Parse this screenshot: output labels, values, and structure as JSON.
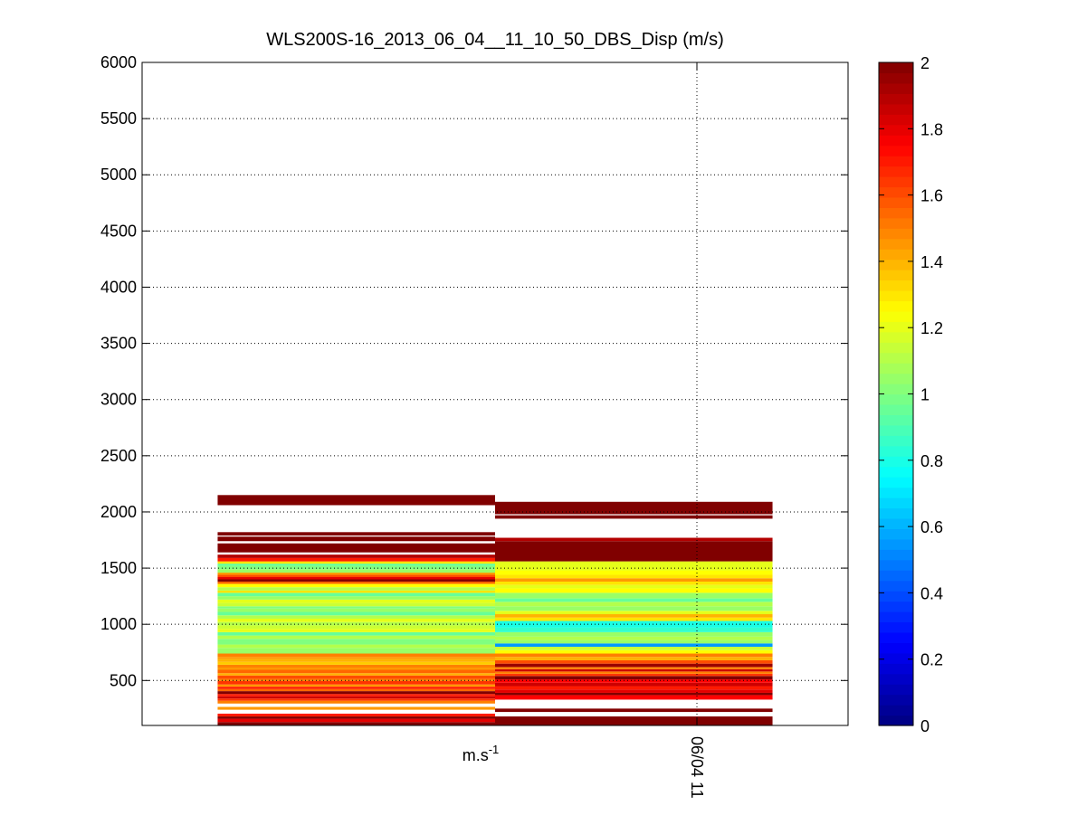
{
  "chart_data": {
    "type": "heatmap",
    "title": "WLS200S-16_2013_06_04__11_10_50_DBS_Disp (m/s)",
    "xlabel": "m.s",
    "xlabel_superscript": "-1",
    "ylabel": "",
    "ylim": [
      100,
      6000
    ],
    "yticks": [
      500,
      1000,
      1500,
      2000,
      2500,
      3000,
      3500,
      4000,
      4500,
      5000,
      5500,
      6000
    ],
    "xticks": [
      "06/04 11"
    ],
    "grid": true,
    "colormap": "jet",
    "clim": [
      0,
      2
    ],
    "colorbar_ticks": [
      0,
      0.2,
      0.4,
      0.6,
      0.8,
      1,
      1.2,
      1.4,
      1.6,
      1.8,
      2
    ],
    "colorbar_tick_labels": [
      "0",
      "0.2",
      "0.4",
      "0.6",
      "0.8",
      "1",
      "1.2",
      "1.4",
      "1.6",
      "1.8",
      "2"
    ],
    "columns": [
      {
        "x_range": [
          0.107,
          0.5
        ],
        "cells": [
          [
            100,
            130,
            2.0
          ],
          [
            130,
            160,
            1.8
          ],
          [
            160,
            180,
            2.0
          ],
          [
            180,
            205,
            1.7
          ],
          [
            240,
            265,
            1.45
          ],
          [
            295,
            320,
            1.5
          ],
          [
            320,
            340,
            1.65
          ],
          [
            340,
            360,
            1.85
          ],
          [
            360,
            380,
            1.7
          ],
          [
            380,
            405,
            2.0
          ],
          [
            405,
            425,
            1.55
          ],
          [
            425,
            445,
            1.7
          ],
          [
            445,
            465,
            1.45
          ],
          [
            465,
            495,
            1.65
          ],
          [
            495,
            515,
            1.5
          ],
          [
            515,
            545,
            1.6
          ],
          [
            545,
            565,
            1.4
          ],
          [
            565,
            595,
            1.55
          ],
          [
            595,
            615,
            1.45
          ],
          [
            615,
            640,
            1.5
          ],
          [
            640,
            665,
            1.35
          ],
          [
            665,
            690,
            1.4
          ],
          [
            690,
            710,
            1.45
          ],
          [
            710,
            740,
            1.5
          ],
          [
            740,
            790,
            1.05
          ],
          [
            790,
            820,
            1.1
          ],
          [
            820,
            870,
            1.0
          ],
          [
            870,
            900,
            1.1
          ],
          [
            900,
            930,
            0.95
          ],
          [
            930,
            960,
            1.2
          ],
          [
            960,
            990,
            1.15
          ],
          [
            990,
            1020,
            1.1
          ],
          [
            1020,
            1050,
            1.2
          ],
          [
            1050,
            1080,
            1.1
          ],
          [
            1080,
            1110,
            0.95
          ],
          [
            1110,
            1140,
            1.05
          ],
          [
            1140,
            1160,
            1.0
          ],
          [
            1160,
            1190,
            1.15
          ],
          [
            1190,
            1220,
            1.2
          ],
          [
            1220,
            1250,
            1.05
          ],
          [
            1250,
            1280,
            0.95
          ],
          [
            1280,
            1300,
            1.3
          ],
          [
            1300,
            1330,
            1.1
          ],
          [
            1330,
            1360,
            1.25
          ],
          [
            1360,
            1380,
            1.55
          ],
          [
            1380,
            1400,
            2.0
          ],
          [
            1400,
            1420,
            1.8
          ],
          [
            1420,
            1440,
            1.6
          ],
          [
            1440,
            1460,
            1.45
          ],
          [
            1460,
            1490,
            1.05
          ],
          [
            1490,
            1520,
            1.0
          ],
          [
            1520,
            1540,
            0.95
          ],
          [
            1540,
            1560,
            1.3
          ],
          [
            1560,
            1590,
            1.7
          ],
          [
            1590,
            1620,
            1.9
          ],
          [
            1640,
            1720,
            2.0
          ],
          [
            1740,
            1780,
            2.0
          ],
          [
            1790,
            1820,
            2.0
          ],
          [
            2060,
            2150,
            2.0
          ]
        ]
      },
      {
        "x_range": [
          0.5,
          0.893
        ],
        "cells": [
          [
            100,
            180,
            2.0
          ],
          [
            220,
            250,
            2.0
          ],
          [
            330,
            370,
            1.75
          ],
          [
            370,
            390,
            2.0
          ],
          [
            390,
            420,
            1.8
          ],
          [
            420,
            450,
            1.7
          ],
          [
            450,
            480,
            1.85
          ],
          [
            480,
            510,
            1.75
          ],
          [
            510,
            540,
            2.0
          ],
          [
            540,
            560,
            1.65
          ],
          [
            560,
            580,
            1.5
          ],
          [
            580,
            600,
            1.85
          ],
          [
            600,
            620,
            1.5
          ],
          [
            620,
            650,
            1.95
          ],
          [
            650,
            680,
            1.6
          ],
          [
            680,
            710,
            1.4
          ],
          [
            710,
            740,
            1.5
          ],
          [
            740,
            770,
            1.25
          ],
          [
            770,
            800,
            1.15
          ],
          [
            800,
            830,
            0.55
          ],
          [
            830,
            860,
            1.05
          ],
          [
            860,
            890,
            1.1
          ],
          [
            890,
            930,
            1.05
          ],
          [
            930,
            970,
            0.85
          ],
          [
            970,
            1030,
            0.8
          ],
          [
            1030,
            1060,
            1.3
          ],
          [
            1060,
            1090,
            1.4
          ],
          [
            1090,
            1120,
            1.2
          ],
          [
            1120,
            1160,
            1.05
          ],
          [
            1160,
            1200,
            1.1
          ],
          [
            1200,
            1230,
            0.95
          ],
          [
            1230,
            1280,
            1.05
          ],
          [
            1280,
            1320,
            1.25
          ],
          [
            1320,
            1350,
            1.2
          ],
          [
            1350,
            1380,
            1.3
          ],
          [
            1380,
            1410,
            1.45
          ],
          [
            1410,
            1440,
            1.3
          ],
          [
            1440,
            1480,
            1.25
          ],
          [
            1480,
            1560,
            1.2
          ],
          [
            1560,
            1740,
            2.0
          ],
          [
            1740,
            1770,
            1.9
          ],
          [
            1940,
            1970,
            2.0
          ],
          [
            1980,
            2090,
            2.0
          ]
        ]
      }
    ]
  }
}
